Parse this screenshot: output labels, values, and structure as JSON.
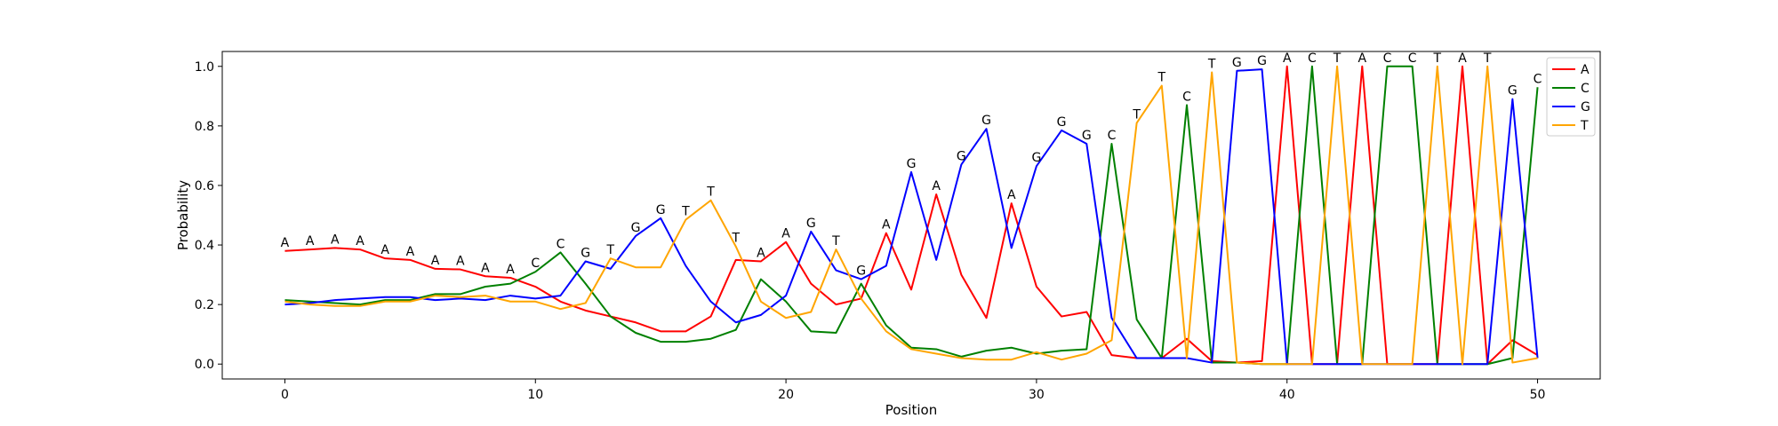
{
  "chart_data": {
    "type": "line",
    "xlabel": "Position",
    "ylabel": "Probability",
    "xlim": [
      -2.5,
      52.5
    ],
    "ylim": [
      -0.05,
      1.05
    ],
    "xticks": [
      0,
      10,
      20,
      30,
      40,
      50
    ],
    "yticks": [
      0.0,
      0.2,
      0.4,
      0.6,
      0.8,
      1.0
    ],
    "grid": false,
    "legend_position": "top-right",
    "x": [
      0,
      1,
      2,
      3,
      4,
      5,
      6,
      7,
      8,
      9,
      10,
      11,
      12,
      13,
      14,
      15,
      16,
      17,
      18,
      19,
      20,
      21,
      22,
      23,
      24,
      25,
      26,
      27,
      28,
      29,
      30,
      31,
      32,
      33,
      34,
      35,
      36,
      37,
      38,
      39,
      40,
      41,
      42,
      43,
      44,
      45,
      46,
      47,
      48,
      49,
      50
    ],
    "series": [
      {
        "name": "A",
        "color": "#ff0000",
        "values": [
          0.38,
          0.385,
          0.39,
          0.385,
          0.355,
          0.35,
          0.32,
          0.318,
          0.295,
          0.29,
          0.26,
          0.21,
          0.18,
          0.16,
          0.14,
          0.11,
          0.11,
          0.16,
          0.35,
          0.345,
          0.41,
          0.27,
          0.2,
          0.22,
          0.44,
          0.25,
          0.57,
          0.3,
          0.155,
          0.54,
          0.26,
          0.16,
          0.175,
          0.03,
          0.02,
          0.02,
          0.085,
          0.01,
          0.005,
          0.01,
          1.0,
          0.0,
          0.0,
          1.0,
          0.0,
          0.0,
          0.0,
          1.0,
          0.0,
          0.08,
          0.03
        ]
      },
      {
        "name": "C",
        "color": "#008000",
        "values": [
          0.215,
          0.21,
          0.205,
          0.2,
          0.215,
          0.215,
          0.235,
          0.235,
          0.26,
          0.27,
          0.31,
          0.375,
          0.27,
          0.16,
          0.105,
          0.075,
          0.075,
          0.085,
          0.115,
          0.285,
          0.21,
          0.11,
          0.105,
          0.27,
          0.13,
          0.055,
          0.05,
          0.025,
          0.045,
          0.055,
          0.035,
          0.045,
          0.05,
          0.74,
          0.15,
          0.02,
          0.87,
          0.005,
          0.005,
          0.0,
          0.0,
          1.0,
          0.0,
          0.0,
          1.0,
          1.0,
          0.0,
          0.0,
          0.0,
          0.02,
          0.93
        ]
      },
      {
        "name": "G",
        "color": "#0000ff",
        "values": [
          0.2,
          0.205,
          0.215,
          0.22,
          0.225,
          0.225,
          0.215,
          0.22,
          0.215,
          0.23,
          0.22,
          0.23,
          0.345,
          0.32,
          0.43,
          0.49,
          0.33,
          0.21,
          0.14,
          0.165,
          0.23,
          0.445,
          0.315,
          0.285,
          0.33,
          0.645,
          0.35,
          0.67,
          0.79,
          0.39,
          0.665,
          0.785,
          0.74,
          0.155,
          0.02,
          0.02,
          0.02,
          0.005,
          0.985,
          0.99,
          0.0,
          0.0,
          0.0,
          0.0,
          0.0,
          0.0,
          0.0,
          0.0,
          0.0,
          0.89,
          0.02
        ]
      },
      {
        "name": "T",
        "color": "#ffa500",
        "values": [
          0.21,
          0.2,
          0.195,
          0.195,
          0.21,
          0.21,
          0.23,
          0.225,
          0.23,
          0.21,
          0.21,
          0.185,
          0.205,
          0.355,
          0.325,
          0.325,
          0.485,
          0.55,
          0.395,
          0.21,
          0.155,
          0.175,
          0.385,
          0.22,
          0.11,
          0.05,
          0.035,
          0.02,
          0.015,
          0.015,
          0.04,
          0.015,
          0.035,
          0.08,
          0.81,
          0.935,
          0.02,
          0.98,
          0.005,
          0.0,
          0.0,
          0.0,
          1.0,
          0.0,
          0.0,
          0.0,
          1.0,
          0.0,
          1.0,
          0.005,
          0.02
        ]
      }
    ],
    "annotations": [
      "A",
      "A",
      "A",
      "A",
      "A",
      "A",
      "A",
      "A",
      "A",
      "A",
      "C",
      "C",
      "G",
      "T",
      "G",
      "G",
      "T",
      "T",
      "T",
      "A",
      "A",
      "G",
      "T",
      "G",
      "A",
      "G",
      "A",
      "G",
      "G",
      "A",
      "G",
      "G",
      "G",
      "C",
      "T",
      "T",
      "C",
      "T",
      "G",
      "G",
      "A",
      "C",
      "T",
      "A",
      "C",
      "C",
      "T",
      "A",
      "T",
      "G",
      "C"
    ]
  }
}
